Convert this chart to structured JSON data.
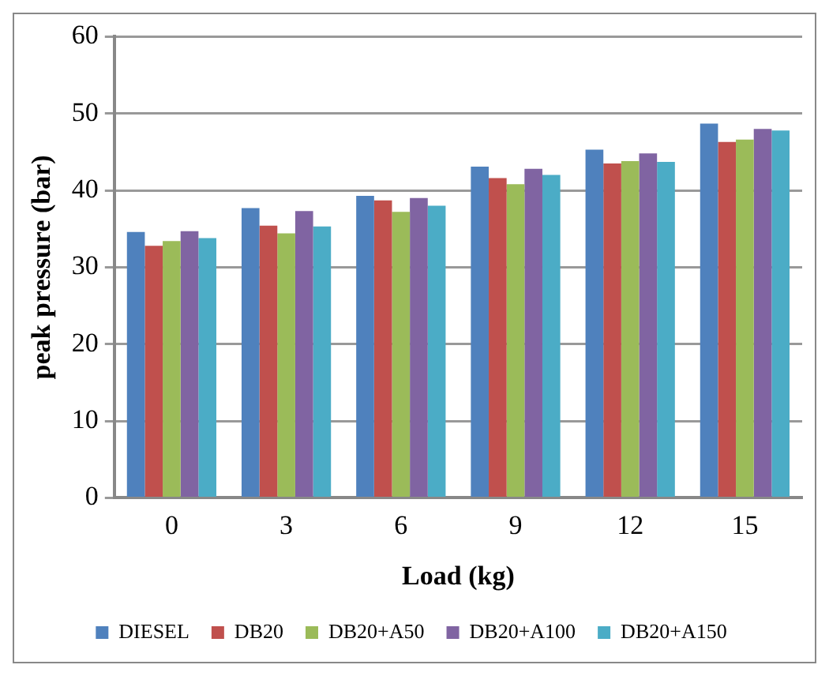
{
  "chart_data": {
    "type": "bar",
    "xlabel": "Load (kg)",
    "ylabel": "peak pressure (bar)",
    "categories": [
      "0",
      "3",
      "6",
      "9",
      "12",
      "15"
    ],
    "series": [
      {
        "name": "DIESEL",
        "color": "#4f81bd",
        "values": [
          34.6,
          37.7,
          39.3,
          43.1,
          45.3,
          48.7
        ]
      },
      {
        "name": "DB20",
        "color": "#c0504d",
        "values": [
          32.8,
          35.4,
          38.7,
          41.6,
          43.5,
          46.3
        ]
      },
      {
        "name": "DB20+A50",
        "color": "#9bbb59",
        "values": [
          33.4,
          34.4,
          37.2,
          40.8,
          43.8,
          46.6
        ]
      },
      {
        "name": "DB20+A100",
        "color": "#8064a2",
        "values": [
          34.7,
          37.3,
          39.0,
          42.8,
          44.8,
          48.0
        ]
      },
      {
        "name": "DB20+A150",
        "color": "#4bacc6",
        "values": [
          33.8,
          35.3,
          38.0,
          42.0,
          43.7,
          47.8
        ]
      }
    ],
    "ylim": [
      0,
      60
    ],
    "yticks": [
      0,
      10,
      20,
      30,
      40,
      50,
      60
    ],
    "grid": "y",
    "legend": "bottom"
  }
}
